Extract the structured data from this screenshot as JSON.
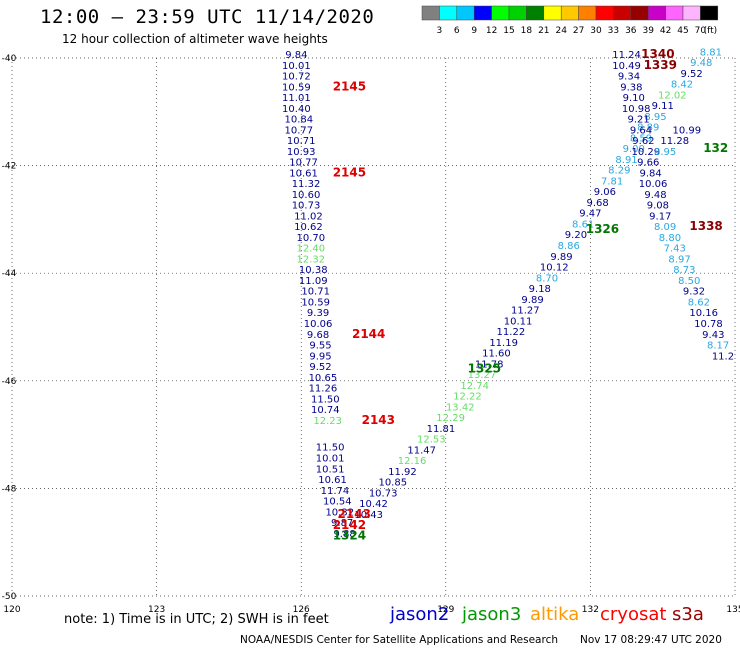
{
  "header": {
    "title": "12:00 – 23:59 UTC 11/14/2020",
    "subtitle": "12 hour collection of altimeter wave heights"
  },
  "legend": {
    "unit": "(ft)",
    "colors": [
      "#808080",
      "#00ffff",
      "#00c8ff",
      "#0000ff",
      "#00ff00",
      "#00d200",
      "#008000",
      "#ffff00",
      "#ffc800",
      "#ff8000",
      "#ff0000",
      "#c80000",
      "#960000",
      "#c800c8",
      "#ff64ff",
      "#ffb4ff",
      "#000000"
    ],
    "labels": [
      "3",
      "6",
      "9",
      "12",
      "15",
      "18",
      "21",
      "24",
      "27",
      "30",
      "33",
      "36",
      "39",
      "42",
      "45",
      "70"
    ]
  },
  "footer": {
    "note": "note:  1) Time is in UTC;  2) SWH is in feet",
    "credit": "NOAA/NESDIS Center for Satellite Applications and Research",
    "timestamp": "Nov 17 08:29:47 UTC 2020"
  },
  "satellites": [
    {
      "name": "jason2",
      "color": "#0000cc"
    },
    {
      "name": "jason3",
      "color": "#009900"
    },
    {
      "name": "altika",
      "color": "#ff9900"
    },
    {
      "name": "cryosat",
      "color": "#ff0000"
    },
    {
      "name": "s3a",
      "color": "#990000"
    }
  ],
  "chart_data": {
    "type": "scatter",
    "xlim": [
      120,
      135
    ],
    "ylim": [
      -50,
      -40
    ],
    "x_ticks": [
      "120",
      "123",
      "126",
      "129",
      "132",
      "135"
    ],
    "y_ticks": [
      "-40",
      "-42",
      "-44",
      "-46",
      "-48",
      "-50"
    ],
    "grid": true,
    "series": [
      {
        "name": "track-a",
        "points": [
          [
            125.9,
            -40.0,
            "9.84",
            "#00008b"
          ],
          [
            125.9,
            -40.2,
            "10.01",
            "#00008b"
          ],
          [
            125.9,
            -40.4,
            "10.72",
            "#00008b"
          ],
          [
            125.9,
            -40.6,
            "10.59",
            "#00008b"
          ],
          [
            125.9,
            -40.8,
            "11.01",
            "#00008b"
          ],
          [
            125.9,
            -41.0,
            "10.40",
            "#00008b"
          ],
          [
            125.95,
            -41.2,
            "10.84",
            "#00008b"
          ],
          [
            125.95,
            -41.4,
            "10.77",
            "#00008b"
          ],
          [
            126.0,
            -41.6,
            "10.71",
            "#00008b"
          ],
          [
            126.0,
            -41.8,
            "10.93",
            "#00008b"
          ],
          [
            126.05,
            -42.0,
            "10.77",
            "#00008b"
          ],
          [
            126.05,
            -42.2,
            "10.61",
            "#00008b"
          ],
          [
            126.1,
            -42.4,
            "11.32",
            "#00008b"
          ],
          [
            126.1,
            -42.6,
            "10.60",
            "#00008b"
          ],
          [
            126.1,
            -42.8,
            "10.73",
            "#00008b"
          ],
          [
            126.15,
            -43.0,
            "11.02",
            "#00008b"
          ],
          [
            126.15,
            -43.2,
            "10.62",
            "#00008b"
          ],
          [
            126.2,
            -43.4,
            "10.70",
            "#00008b"
          ],
          [
            126.2,
            -43.6,
            "12.40",
            "#66dd66"
          ],
          [
            126.2,
            -43.8,
            "12.32",
            "#66dd66"
          ],
          [
            126.25,
            -44.0,
            "10.38",
            "#00008b"
          ],
          [
            126.25,
            -44.2,
            "11.09",
            "#00008b"
          ],
          [
            126.3,
            -44.4,
            "10.71",
            "#00008b"
          ],
          [
            126.3,
            -44.6,
            "10.59",
            "#00008b"
          ],
          [
            126.35,
            -44.8,
            "9.39",
            "#00008b"
          ],
          [
            126.35,
            -45.0,
            "10.06",
            "#00008b"
          ],
          [
            126.35,
            -45.2,
            "9.68",
            "#00008b"
          ],
          [
            126.4,
            -45.4,
            "9.55",
            "#00008b"
          ],
          [
            126.4,
            -45.6,
            "9.95",
            "#00008b"
          ],
          [
            126.4,
            -45.8,
            "9.52",
            "#00008b"
          ],
          [
            126.45,
            -46.0,
            "10.65",
            "#00008b"
          ],
          [
            126.45,
            -46.2,
            "11.26",
            "#00008b"
          ],
          [
            126.5,
            -46.4,
            "11.50",
            "#00008b"
          ],
          [
            126.5,
            -46.6,
            "10.74",
            "#00008b"
          ],
          [
            126.55,
            -46.8,
            "12.23",
            "#66dd66"
          ],
          [
            126.6,
            -47.3,
            "11.50",
            "#00008b"
          ],
          [
            126.6,
            -47.5,
            "10.01",
            "#00008b"
          ],
          [
            126.6,
            -47.7,
            "10.51",
            "#00008b"
          ],
          [
            126.65,
            -47.9,
            "10.61",
            "#00008b"
          ],
          [
            126.7,
            -48.1,
            "11.74",
            "#00008b"
          ],
          [
            126.75,
            -48.3,
            "10.54",
            "#00008b"
          ],
          [
            126.8,
            -48.5,
            "10.32",
            "#00008b"
          ],
          [
            126.85,
            -48.7,
            "9.87",
            "#00008b"
          ],
          [
            126.9,
            -48.9,
            "9.88",
            "#00008b"
          ]
        ]
      },
      {
        "name": "track-b",
        "points": [
          [
            127.4,
            -48.55,
            "10.43",
            "#00008b"
          ],
          [
            127.5,
            -48.35,
            "10.42",
            "#00008b"
          ],
          [
            127.7,
            -48.15,
            "10.73",
            "#00008b"
          ],
          [
            127.9,
            -47.95,
            "10.85",
            "#00008b"
          ],
          [
            128.1,
            -47.75,
            "11.92",
            "#00008b"
          ],
          [
            128.3,
            -47.55,
            "12.16",
            "#66dd66"
          ],
          [
            128.5,
            -47.35,
            "11.47",
            "#00008b"
          ],
          [
            128.7,
            -47.15,
            "12.53",
            "#66dd66"
          ],
          [
            128.9,
            -46.95,
            "11.81",
            "#00008b"
          ],
          [
            129.1,
            -46.75,
            "12.29",
            "#66dd66"
          ],
          [
            129.3,
            -46.55,
            "13.42",
            "#66dd66"
          ],
          [
            129.45,
            -46.35,
            "12.22",
            "#66dd66"
          ],
          [
            129.6,
            -46.15,
            "12.74",
            "#66dd66"
          ],
          [
            129.75,
            -45.95,
            "13.27",
            "#66dd66"
          ],
          [
            129.9,
            -45.75,
            "11.78",
            "#00008b"
          ],
          [
            130.05,
            -45.55,
            "11.60",
            "#00008b"
          ],
          [
            130.2,
            -45.35,
            "11.19",
            "#00008b"
          ],
          [
            130.35,
            -45.15,
            "11.22",
            "#00008b"
          ],
          [
            130.5,
            -44.95,
            "10.11",
            "#00008b"
          ],
          [
            130.65,
            -44.75,
            "11.27",
            "#00008b"
          ],
          [
            130.8,
            -44.55,
            "9.89",
            "#00008b"
          ],
          [
            130.95,
            -44.35,
            "9.18",
            "#00008b"
          ],
          [
            131.1,
            -44.15,
            "8.70",
            "#2aa8e0"
          ],
          [
            131.25,
            -43.95,
            "10.12",
            "#00008b"
          ],
          [
            131.4,
            -43.75,
            "9.89",
            "#00008b"
          ],
          [
            131.55,
            -43.55,
            "8.86",
            "#2aa8e0"
          ],
          [
            131.7,
            -43.35,
            "9.20",
            "#00008b"
          ],
          [
            131.85,
            -43.15,
            "8.61",
            "#2aa8e0"
          ],
          [
            132.0,
            -42.95,
            "9.47",
            "#00008b"
          ],
          [
            132.15,
            -42.75,
            "9.68",
            "#00008b"
          ],
          [
            132.3,
            -42.55,
            "9.06",
            "#00008b"
          ],
          [
            132.45,
            -42.35,
            "7.81",
            "#2aa8e0"
          ],
          [
            132.6,
            -42.15,
            "8.29",
            "#2aa8e0"
          ],
          [
            132.75,
            -41.95,
            "8.91",
            "#2aa8e0"
          ],
          [
            132.9,
            -41.75,
            "9.00",
            "#2aa8e0"
          ],
          [
            133.05,
            -41.55,
            "8.59",
            "#2aa8e0"
          ],
          [
            133.2,
            -41.35,
            "8.89",
            "#2aa8e0"
          ],
          [
            133.35,
            -41.15,
            "8.95",
            "#2aa8e0"
          ],
          [
            133.5,
            -40.95,
            "9.11",
            "#00008b"
          ],
          [
            133.7,
            -40.75,
            "12.02",
            "#66dd66"
          ],
          [
            133.9,
            -40.55,
            "8.42",
            "#2aa8e0"
          ],
          [
            134.1,
            -40.35,
            "9.52",
            "#00008b"
          ],
          [
            134.3,
            -40.15,
            "9.48",
            "#2aa8e0"
          ],
          [
            134.5,
            -39.95,
            "8.81",
            "#2aa8e0"
          ]
        ]
      },
      {
        "name": "track-c",
        "points": [
          [
            132.75,
            -40.0,
            "11.24",
            "#00008b"
          ],
          [
            132.75,
            -40.2,
            "10.49",
            "#00008b"
          ],
          [
            132.8,
            -40.4,
            "9.34",
            "#00008b"
          ],
          [
            132.85,
            -40.6,
            "9.38",
            "#00008b"
          ],
          [
            132.9,
            -40.8,
            "9.10",
            "#00008b"
          ],
          [
            132.95,
            -41.0,
            "10.98",
            "#00008b"
          ],
          [
            133.0,
            -41.2,
            "9.21",
            "#00008b"
          ],
          [
            133.05,
            -41.4,
            "9.64",
            "#00008b"
          ],
          [
            133.1,
            -41.6,
            "9.62",
            "#00008b"
          ],
          [
            133.15,
            -41.8,
            "10.29",
            "#00008b"
          ],
          [
            133.2,
            -42.0,
            "9.66",
            "#00008b"
          ],
          [
            133.25,
            -42.2,
            "9.84",
            "#00008b"
          ],
          [
            133.3,
            -42.4,
            "10.06",
            "#00008b"
          ],
          [
            133.35,
            -42.6,
            "9.48",
            "#00008b"
          ],
          [
            133.4,
            -42.8,
            "9.08",
            "#00008b"
          ],
          [
            133.45,
            -43.0,
            "9.17",
            "#00008b"
          ],
          [
            133.55,
            -43.2,
            "8.09",
            "#2aa8e0"
          ],
          [
            133.65,
            -43.4,
            "8.80",
            "#2aa8e0"
          ],
          [
            133.75,
            -43.6,
            "7.43",
            "#2aa8e0"
          ],
          [
            133.85,
            -43.8,
            "8.97",
            "#2aa8e0"
          ],
          [
            133.95,
            -44.0,
            "8.73",
            "#2aa8e0"
          ],
          [
            134.05,
            -44.2,
            "8.50",
            "#2aa8e0"
          ],
          [
            134.15,
            -44.4,
            "9.32",
            "#00008b"
          ],
          [
            134.25,
            -44.6,
            "8.62",
            "#2aa8e0"
          ],
          [
            134.35,
            -44.8,
            "10.16",
            "#00008b"
          ],
          [
            134.45,
            -45.0,
            "10.78",
            "#00008b"
          ],
          [
            134.55,
            -45.2,
            "9.43",
            "#00008b"
          ],
          [
            134.65,
            -45.4,
            "8.17",
            "#2aa8e0"
          ],
          [
            134.75,
            -45.6,
            "11.2",
            "#00008b"
          ]
        ]
      },
      {
        "name": "track-c-side",
        "points": [
          [
            134.0,
            -41.4,
            "10.99",
            "#00008b"
          ],
          [
            133.75,
            -41.6,
            "11.28",
            "#00008b"
          ],
          [
            133.55,
            -41.8,
            "8.95",
            "#2aa8e0"
          ]
        ]
      }
    ],
    "annotations": [
      {
        "x": 127.0,
        "y": -40.6,
        "text": "2145",
        "color": "#dd0000"
      },
      {
        "x": 127.0,
        "y": -42.2,
        "text": "2145",
        "color": "#dd0000"
      },
      {
        "x": 127.4,
        "y": -45.2,
        "text": "2144",
        "color": "#dd0000"
      },
      {
        "x": 127.6,
        "y": -46.8,
        "text": "2143",
        "color": "#dd0000"
      },
      {
        "x": 127.1,
        "y": -48.55,
        "text": "2143",
        "color": "#dd0000"
      },
      {
        "x": 127.0,
        "y": -48.75,
        "text": "2142",
        "color": "#dd0000"
      },
      {
        "x": 127.0,
        "y": -48.95,
        "text": "1324",
        "color": "#007700"
      },
      {
        "x": 129.8,
        "y": -45.85,
        "text": "1325",
        "color": "#007700"
      },
      {
        "x": 132.25,
        "y": -43.25,
        "text": "1326",
        "color": "#007700"
      },
      {
        "x": 134.6,
        "y": -41.75,
        "text": "132",
        "color": "#007700"
      },
      {
        "x": 133.4,
        "y": -40.0,
        "text": "1340",
        "color": "#8b0000"
      },
      {
        "x": 133.45,
        "y": -40.2,
        "text": "1339",
        "color": "#8b0000"
      },
      {
        "x": 134.4,
        "y": -43.2,
        "text": "1338",
        "color": "#8b0000"
      }
    ]
  }
}
